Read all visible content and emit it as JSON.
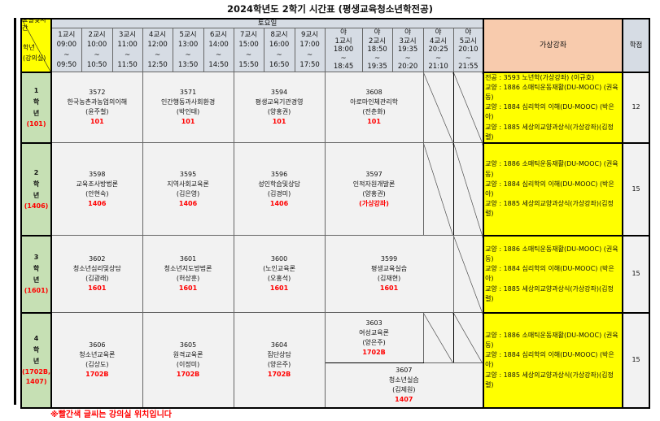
{
  "title": "2024학년도 2학기 시간표 (평생교육청소년학전공)",
  "header": {
    "corner_top": "요일및시간",
    "corner_bottom": "학년",
    "corner_room": "(강의실)",
    "day": "토요일",
    "virtual": "가상강좌",
    "credit": "학점",
    "periods": [
      {
        "label": "1교시",
        "start": "09:00",
        "sep": "~",
        "end": "09:50"
      },
      {
        "label": "2교시",
        "start": "10:00",
        "sep": "~",
        "end": "10:50"
      },
      {
        "label": "3교시",
        "start": "11:00",
        "sep": "~",
        "end": "11:50"
      },
      {
        "label": "4교시",
        "start": "12:00",
        "sep": "~",
        "end": "12:50"
      },
      {
        "label": "5교시",
        "start": "13:00",
        "sep": "~",
        "end": "13:50"
      },
      {
        "label": "6교시",
        "start": "14:00",
        "sep": "~",
        "end": "14:50"
      },
      {
        "label": "7교시",
        "start": "15:00",
        "sep": "~",
        "end": "15:50"
      },
      {
        "label": "8교시",
        "start": "16:00",
        "sep": "~",
        "end": "16:50"
      },
      {
        "label": "9교시",
        "start": "17:00",
        "sep": "~",
        "end": "17:50"
      }
    ],
    "night": [
      {
        "pre": "야",
        "label": "1교시",
        "start": "18:00",
        "sep": "~",
        "end": "18:45"
      },
      {
        "pre": "야",
        "label": "2교시",
        "start": "18:50",
        "sep": "~",
        "end": "19:35"
      },
      {
        "pre": "야",
        "label": "3교시",
        "start": "19:35",
        "sep": "~",
        "end": "20:20"
      },
      {
        "pre": "야",
        "label": "4교시",
        "start": "20:25",
        "sep": "~",
        "end": "21:10"
      },
      {
        "pre": "야",
        "label": "5교시",
        "start": "20:10",
        "sep": "~",
        "end": "21:55"
      }
    ]
  },
  "rows": [
    {
      "grade": [
        "1",
        "학",
        "년"
      ],
      "room": "(101)",
      "credit": "12",
      "courses": [
        {
          "code": "3572",
          "name": "한국농촌과농업의이해",
          "prof": "(윤주철)",
          "room": "101"
        },
        {
          "code": "3571",
          "name": "인간행동과사회환경",
          "prof": "(박인태)",
          "room": "101"
        },
        {
          "code": "3594",
          "name": "평생교육기관경영",
          "prof": "(양홍권)",
          "room": "101"
        },
        {
          "code": "3608",
          "name": "아로마인체관리학",
          "prof": "(전춘화)",
          "room": "101"
        }
      ],
      "virtual": [
        "전공 : 3593 노년학(가상강좌) (이규호)",
        "교양 : 1886 소매틱운동재활(DU-MOOC) (권육동)",
        "교양 : 1884 심리학의 이해(DU-MOOC) (박은아)",
        "교양 : 1885 세상의교양과상식(가상강좌)(김정렬)"
      ]
    },
    {
      "grade": [
        "2",
        "학",
        "년"
      ],
      "room": "(1406)",
      "credit": "15",
      "courses": [
        {
          "code": "3598",
          "name": "교육조사방법론",
          "prof": "(안현숙)",
          "room": "1406"
        },
        {
          "code": "3595",
          "name": "지역사회교육론",
          "prof": "(김은영)",
          "room": "1406"
        },
        {
          "code": "3596",
          "name": "성인학습및상담",
          "prof": "(김경미)",
          "room": "1406"
        },
        {
          "code": "3597",
          "name": "인적자원개발론",
          "prof": "(양홍권)",
          "room": "(가상강좌)"
        }
      ],
      "virtual": [
        "교양 : 1886 소매틱운동재활(DU-MOOC) (권육동)",
        "교양 : 1884 심리학의 이해(DU-MOOC) (박은아)",
        "교양 : 1885 세상의교양과상식(가상강좌)(김정렬)"
      ]
    },
    {
      "grade": [
        "3",
        "학",
        "년"
      ],
      "room": "(1601)",
      "credit": "15",
      "courses": [
        {
          "code": "3602",
          "name": "청소년심리및상담",
          "prof": "(김광래)",
          "room": "1601"
        },
        {
          "code": "3601",
          "name": "청소년지도방법론",
          "prof": "(허상훈)",
          "room": "1601"
        },
        {
          "code": "3600",
          "name": "(노인교육론",
          "prof": "(오홍석)",
          "room": "1601"
        },
        {
          "code": "3599",
          "name": "평생교육실습",
          "prof": "(김재현)",
          "room": "1601"
        }
      ],
      "virtual": [
        "교양 : 1886 소매틱운동재활(DU-MOOC) (권육동)",
        "교양 : 1884 심리학의 이해(DU-MOOC) (박은아)",
        "교양 : 1885 세상의교양과상식(가상강좌)(김정렬)"
      ]
    },
    {
      "grade": [
        "4",
        "학",
        "년"
      ],
      "room": "(1702B,",
      "room2": "1407)",
      "credit": "15",
      "courses": [
        {
          "code": "3606",
          "name": "청소년교육론",
          "prof": "(김상도)",
          "room": "1702B"
        },
        {
          "code": "3605",
          "name": "원격교육론",
          "prof": "(이정미)",
          "room": "1702B"
        },
        {
          "code": "3604",
          "name": "집단상담",
          "prof": "(양은주)",
          "room": "1702B"
        },
        {
          "code": "3603",
          "name": "여성교육론",
          "prof": "(양은주)",
          "room": "1702B"
        },
        {
          "code": "3607",
          "name": "청소년실습",
          "prof": "(김제원)",
          "room": "1407"
        }
      ],
      "virtual": [
        "교양 : 1886 소매틱운동재활(DU-MOOC) (권육동)",
        "교양 : 1884 심리학의 이해(DU-MOOC) (박은아)",
        "교양 : 1885 세상의교양과상식(가상강좌)(김정렬)"
      ]
    }
  ],
  "note": "※빨간색 글씨는 강의실 위치입니다"
}
